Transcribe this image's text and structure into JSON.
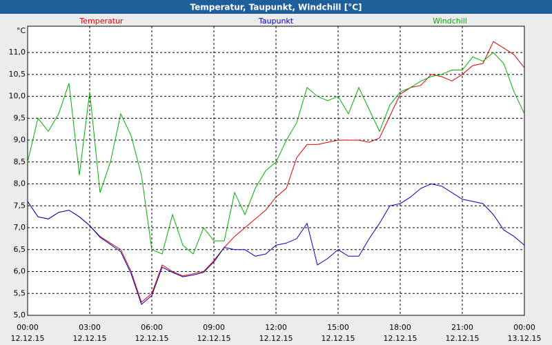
{
  "chart_data": {
    "type": "line",
    "title": "Temperatur, Taupunkt, Windchill [°C]",
    "y_unit": "°C",
    "x": [
      0,
      0.5,
      1,
      1.5,
      2,
      2.5,
      3,
      3.5,
      4,
      4.5,
      5,
      5.5,
      6,
      6.5,
      7,
      7.5,
      8,
      8.5,
      9,
      9.5,
      10,
      10.5,
      11,
      11.5,
      12,
      12.5,
      13,
      13.5,
      14,
      14.5,
      15,
      15.5,
      16,
      16.5,
      17,
      17.5,
      18,
      18.5,
      19,
      19.5,
      20,
      20.5,
      21,
      21.5,
      22,
      22.5,
      23,
      23.5,
      24
    ],
    "series": [
      {
        "name": "Temperatur",
        "color": "#e00000",
        "values": [
          7.6,
          7.25,
          7.2,
          7.35,
          7.4,
          7.25,
          7.05,
          6.8,
          6.65,
          6.5,
          6.0,
          5.3,
          5.5,
          6.15,
          6.0,
          5.9,
          5.95,
          6.0,
          6.25,
          6.55,
          6.8,
          7.0,
          7.2,
          7.4,
          7.7,
          7.9,
          8.6,
          8.9,
          8.9,
          8.95,
          9.0,
          9.0,
          9.0,
          8.95,
          9.05,
          9.55,
          10.05,
          10.2,
          10.25,
          10.5,
          10.45,
          10.35,
          10.5,
          10.7,
          10.75,
          11.25,
          11.1,
          10.95,
          10.65
        ]
      },
      {
        "name": "Taupunkt",
        "color": "#0000c0",
        "values": [
          7.6,
          7.25,
          7.2,
          7.35,
          7.4,
          7.25,
          7.05,
          6.78,
          6.62,
          6.45,
          5.95,
          5.25,
          5.45,
          6.1,
          5.98,
          5.88,
          5.92,
          5.98,
          6.22,
          6.55,
          6.5,
          6.5,
          6.35,
          6.4,
          6.6,
          6.65,
          6.75,
          7.1,
          6.15,
          6.3,
          6.5,
          6.35,
          6.35,
          6.75,
          7.1,
          7.5,
          7.55,
          7.7,
          7.9,
          8.0,
          7.95,
          7.8,
          7.65,
          7.6,
          7.55,
          7.3,
          6.95,
          6.8,
          6.6
        ]
      },
      {
        "name": "Windchill",
        "color": "#00b000",
        "values": [
          8.5,
          9.5,
          9.2,
          9.6,
          10.3,
          8.2,
          10.1,
          7.8,
          8.5,
          9.6,
          9.1,
          8.2,
          6.5,
          6.4,
          7.3,
          6.6,
          6.4,
          7.0,
          6.7,
          6.7,
          7.8,
          7.3,
          7.9,
          8.3,
          8.5,
          9.0,
          9.4,
          10.2,
          10.0,
          9.9,
          10.0,
          9.6,
          10.2,
          9.7,
          9.2,
          9.8,
          10.1,
          10.2,
          10.35,
          10.45,
          10.5,
          10.6,
          10.6,
          10.9,
          10.8,
          11.0,
          10.75,
          10.1,
          9.6
        ]
      }
    ],
    "xlim": [
      0,
      24
    ],
    "xticks": [
      {
        "value": 0,
        "label": "00:00"
      },
      {
        "value": 3,
        "label": "03:00"
      },
      {
        "value": 6,
        "label": "06:00"
      },
      {
        "value": 9,
        "label": "09:00"
      },
      {
        "value": 12,
        "label": "12:00"
      },
      {
        "value": 15,
        "label": "15:00"
      },
      {
        "value": 18,
        "label": "18:00"
      },
      {
        "value": 21,
        "label": "21:00"
      },
      {
        "value": 24,
        "label": "00:00"
      }
    ],
    "xtick_dates": [
      "12.12.15",
      "12.12.15",
      "12.12.15",
      "12.12.15",
      "12.12.15",
      "12.12.15",
      "12.12.15",
      "12.12.15",
      "13.12.15"
    ],
    "ylim": [
      5.0,
      11.6
    ],
    "yticks": [
      {
        "value": 5.0,
        "label": "5,0"
      },
      {
        "value": 5.5,
        "label": "5,5"
      },
      {
        "value": 6.0,
        "label": "6,0"
      },
      {
        "value": 6.5,
        "label": "6,5"
      },
      {
        "value": 7.0,
        "label": "7,0"
      },
      {
        "value": 7.5,
        "label": "7,5"
      },
      {
        "value": 8.0,
        "label": "8,0"
      },
      {
        "value": 8.5,
        "label": "8,5"
      },
      {
        "value": 9.0,
        "label": "9,0"
      },
      {
        "value": 9.5,
        "label": "9,5"
      },
      {
        "value": 10.0,
        "label": "10,0"
      },
      {
        "value": 10.5,
        "label": "10,5"
      },
      {
        "value": 11.0,
        "label": "11,0"
      }
    ],
    "grid": true
  }
}
